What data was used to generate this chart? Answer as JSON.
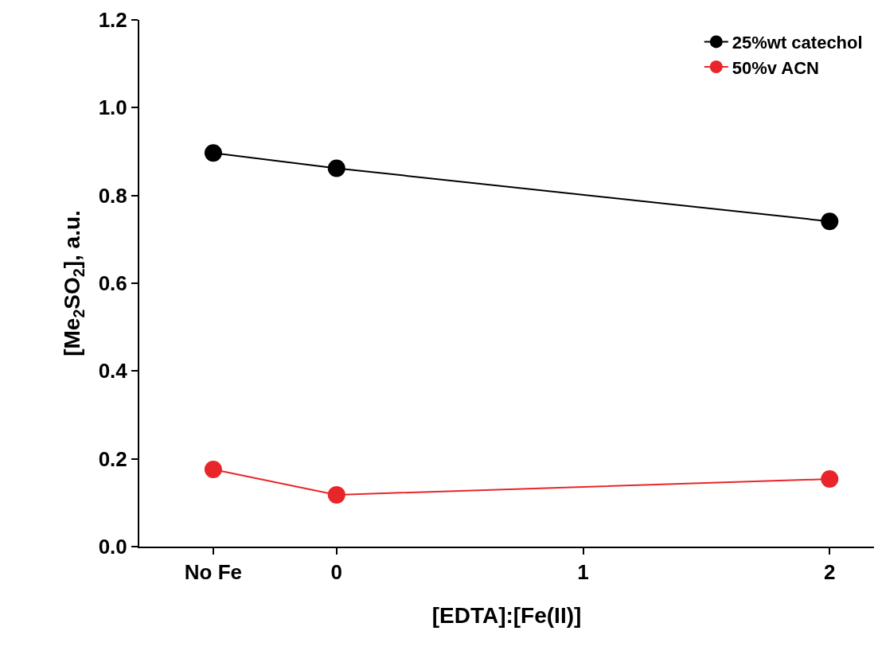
{
  "chart_data": {
    "type": "line",
    "xlabel": "[EDTA]:[Fe(II)]",
    "ylabel": "[Me$_{2}$SO$_{2}$], a.u.",
    "x": [
      -0.5,
      0,
      2
    ],
    "series": [
      {
        "name": "25%wt catechol",
        "color": "#000000",
        "values": [
          0.897,
          0.862,
          0.741
        ]
      },
      {
        "name": "50%v ACN",
        "color": "#e8262a",
        "values": [
          0.176,
          0.118,
          0.154
        ]
      }
    ],
    "xlim": [
      -0.8,
      2.18
    ],
    "xticks": [
      {
        "value": -0.5,
        "label": "No Fe"
      },
      0,
      1,
      2
    ],
    "ylim": [
      0,
      1.2
    ],
    "yticks": [
      {
        "value": 0,
        "label": "0.0"
      },
      0.2,
      0.4,
      0.6,
      0.8,
      {
        "value": 1,
        "label": "1.0"
      },
      1.2
    ],
    "legend": "top right",
    "marker": "circle",
    "line_style": "solid"
  }
}
